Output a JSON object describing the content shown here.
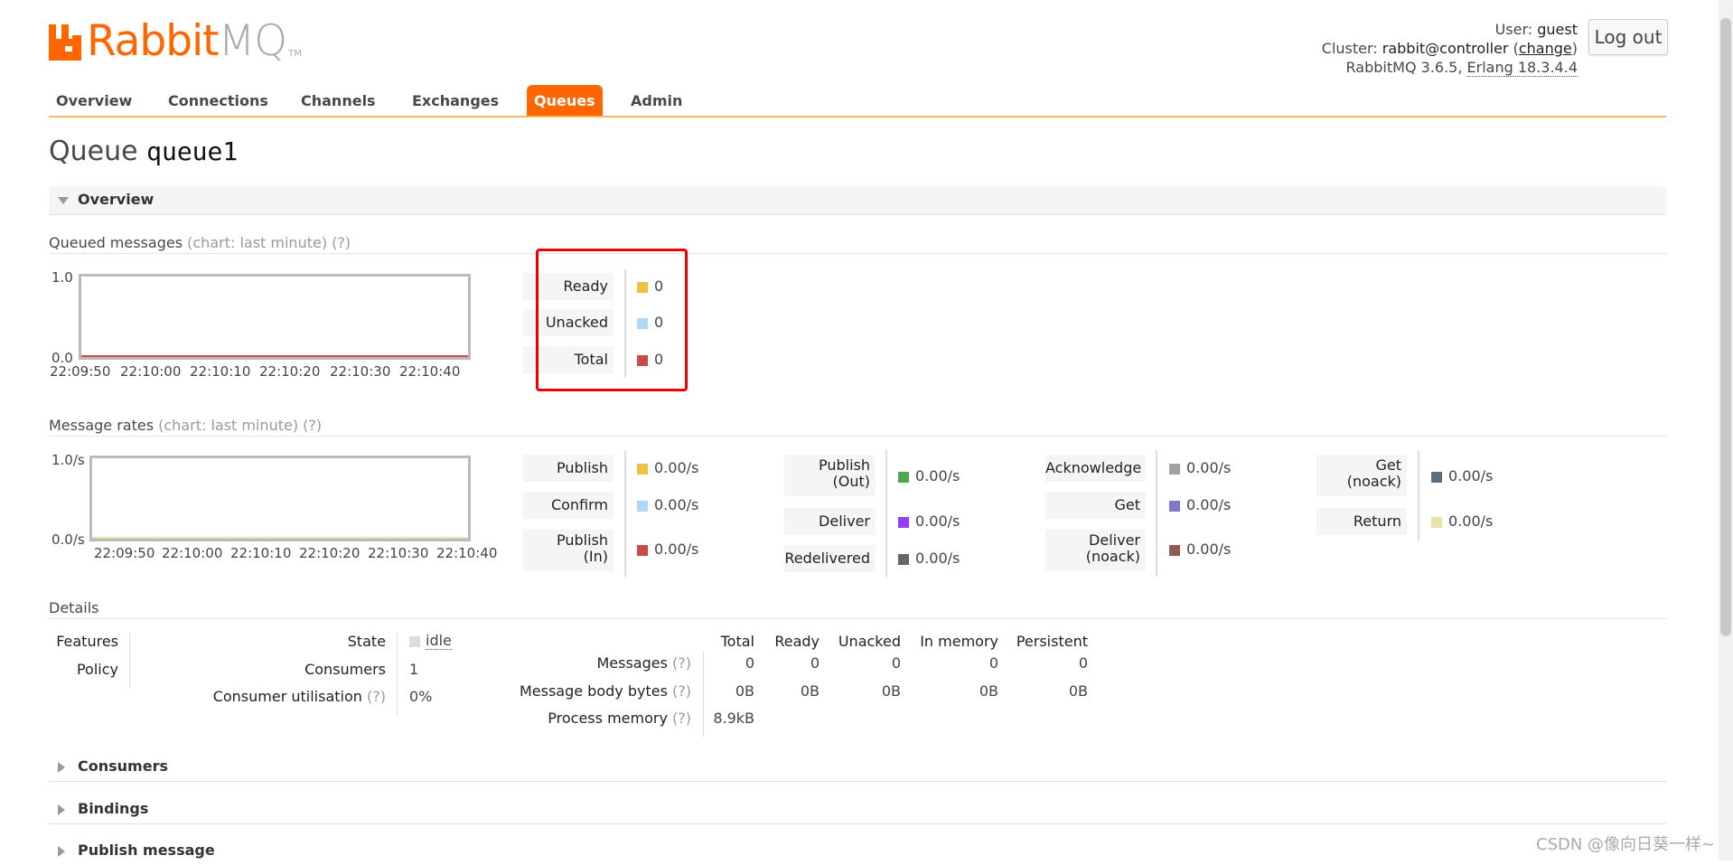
{
  "header": {
    "brand_prefix": "Rabbit",
    "brand_suffix": "MQ",
    "trademark": "TM",
    "user_label": "User:",
    "user_value": "guest",
    "cluster_label": "Cluster:",
    "cluster_value": "rabbit@controller",
    "change_open": "(",
    "change_link": "change",
    "change_close": ")",
    "version_label": "RabbitMQ 3.6.5,",
    "erlang": "Erlang 18.3.4.4",
    "logout": "Log out"
  },
  "nav": [
    "Overview",
    "Connections",
    "Channels",
    "Exchanges",
    "Queues",
    "Admin"
  ],
  "nav_active": "Queues",
  "page": {
    "title_prefix": "Queue",
    "queue_name": "queue1"
  },
  "sections": {
    "overview": "Overview",
    "consumers": "Consumers",
    "bindings": "Bindings",
    "publish_message": "Publish message"
  },
  "queued": {
    "heading": "Queued messages",
    "chart_note": "(chart: last minute)",
    "help": "(?)",
    "y_top": "1.0",
    "y_bottom": "0.0",
    "x_ticks": [
      "22:09:50",
      "22:10:00",
      "22:10:10",
      "22:10:20",
      "22:10:30",
      "22:10:40"
    ],
    "legend": [
      {
        "label": "Ready",
        "value": "0",
        "color": "#edc240"
      },
      {
        "label": "Unacked",
        "value": "0",
        "color": "#afd8f8"
      },
      {
        "label": "Total",
        "value": "0",
        "color": "#cb4b4b"
      }
    ]
  },
  "rates": {
    "heading": "Message rates",
    "chart_note": "(chart: last minute)",
    "help": "(?)",
    "y_top": "1.0/s",
    "y_bottom": "0.0/s",
    "x_ticks": [
      "22:09:50",
      "22:10:00",
      "22:10:10",
      "22:10:20",
      "22:10:30",
      "22:10:40"
    ],
    "col1": [
      {
        "label": "Publish",
        "value": "0.00/s",
        "color": "#edc240"
      },
      {
        "label": "Confirm",
        "value": "0.00/s",
        "color": "#afd8f8"
      },
      {
        "label": "Publish\n(In)",
        "value": "0.00/s",
        "color": "#cb4b4b"
      }
    ],
    "col2": [
      {
        "label": "Publish\n(Out)",
        "value": "0.00/s",
        "color": "#4da74d"
      },
      {
        "label": "Deliver",
        "value": "0.00/s",
        "color": "#9440ed"
      },
      {
        "label": "Redelivered",
        "value": "0.00/s",
        "color": "#666666"
      }
    ],
    "col3": [
      {
        "label": "Acknowledge",
        "value": "0.00/s",
        "color": "#a0a0a0"
      },
      {
        "label": "Get",
        "value": "0.00/s",
        "color": "#7a7ac9"
      },
      {
        "label": "Deliver\n(noack)",
        "value": "0.00/s",
        "color": "#8e5a5a"
      }
    ],
    "col4": [
      {
        "label": "Get\n(noack)",
        "value": "0.00/s",
        "color": "#5a6e80"
      },
      {
        "label": "Return",
        "value": "0.00/s",
        "color": "#e8e2a8"
      }
    ]
  },
  "details": {
    "heading": "Details",
    "features_label": "Features",
    "policy_label": "Policy",
    "state_label": "State",
    "state_value": "idle",
    "consumers_label": "Consumers",
    "consumers_value": "1",
    "utilisation_label": "Consumer utilisation",
    "utilisation_help": "(?)",
    "utilisation_value": "0%",
    "columns": [
      "Total",
      "Ready",
      "Unacked",
      "In memory",
      "Persistent"
    ],
    "rows": [
      {
        "label": "Messages",
        "help": "(?)",
        "values": [
          "0",
          "0",
          "0",
          "0",
          "0"
        ]
      },
      {
        "label": "Message body bytes",
        "help": "(?)",
        "values": [
          "0B",
          "0B",
          "0B",
          "0B",
          "0B"
        ]
      },
      {
        "label": "Process memory",
        "help": "(?)",
        "values": [
          "8.9kB"
        ]
      }
    ]
  },
  "watermark": "CSDN @像向日葵一样~"
}
